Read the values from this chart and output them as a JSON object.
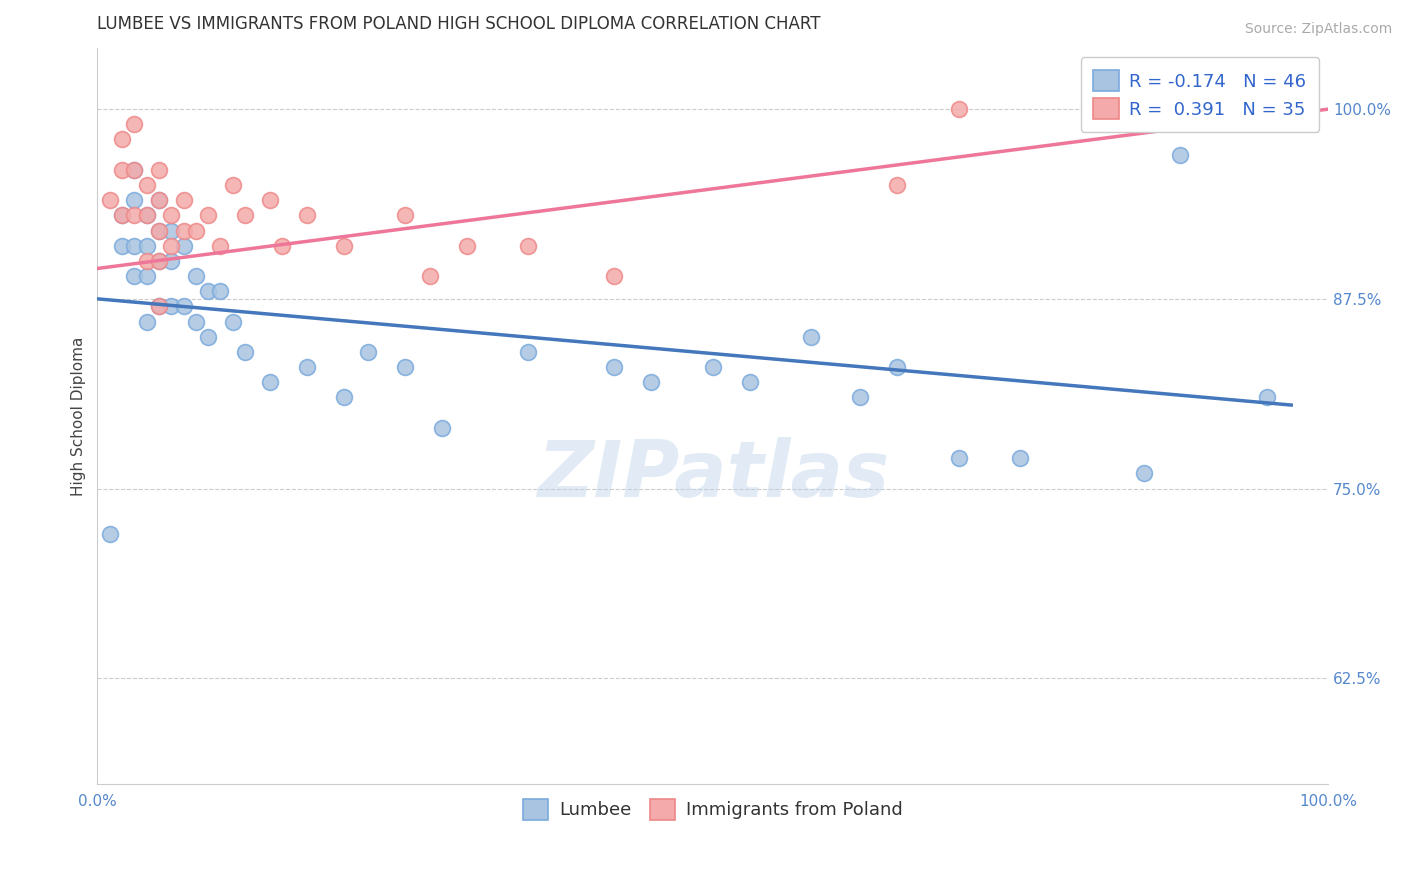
{
  "title": "LUMBEE VS IMMIGRANTS FROM POLAND HIGH SCHOOL DIPLOMA CORRELATION CHART",
  "source": "Source: ZipAtlas.com",
  "ylabel": "High School Diploma",
  "xlim": [
    0.0,
    1.0
  ],
  "ylim": [
    0.555,
    1.04
  ],
  "ytick_vals": [
    0.625,
    0.75,
    0.875,
    1.0
  ],
  "ytick_labels": [
    "62.5%",
    "75.0%",
    "87.5%",
    "100.0%"
  ],
  "xtick_vals": [
    0.0,
    1.0
  ],
  "xtick_labels": [
    "0.0%",
    "100.0%"
  ],
  "lumbee_R": -0.174,
  "lumbee_N": 46,
  "poland_R": 0.391,
  "poland_N": 35,
  "lumbee_color": "#a8c4e0",
  "poland_color": "#f4aaaa",
  "lumbee_edge_color": "#7aaadd",
  "poland_edge_color": "#ee8888",
  "lumbee_line_color": "#4477bb",
  "poland_line_color": "#ee7799",
  "background_color": "#ffffff",
  "grid_color": "#cccccc",
  "watermark": "ZIPatlas",
  "lumbee_x": [
    0.01,
    0.02,
    0.02,
    0.03,
    0.03,
    0.03,
    0.03,
    0.04,
    0.04,
    0.04,
    0.04,
    0.05,
    0.05,
    0.05,
    0.05,
    0.06,
    0.06,
    0.06,
    0.07,
    0.07,
    0.08,
    0.08,
    0.09,
    0.09,
    0.1,
    0.11,
    0.12,
    0.14,
    0.17,
    0.2,
    0.22,
    0.25,
    0.28,
    0.35,
    0.42,
    0.45,
    0.5,
    0.53,
    0.58,
    0.62,
    0.65,
    0.7,
    0.75,
    0.85,
    0.88,
    0.95
  ],
  "lumbee_y": [
    0.72,
    0.93,
    0.91,
    0.96,
    0.94,
    0.91,
    0.89,
    0.93,
    0.91,
    0.89,
    0.86,
    0.94,
    0.92,
    0.9,
    0.87,
    0.92,
    0.9,
    0.87,
    0.91,
    0.87,
    0.89,
    0.86,
    0.88,
    0.85,
    0.88,
    0.86,
    0.84,
    0.82,
    0.83,
    0.81,
    0.84,
    0.83,
    0.79,
    0.84,
    0.83,
    0.82,
    0.83,
    0.82,
    0.85,
    0.81,
    0.83,
    0.77,
    0.77,
    0.76,
    0.97,
    0.81
  ],
  "poland_x": [
    0.01,
    0.02,
    0.02,
    0.02,
    0.03,
    0.03,
    0.03,
    0.04,
    0.04,
    0.04,
    0.05,
    0.05,
    0.05,
    0.05,
    0.05,
    0.06,
    0.06,
    0.07,
    0.07,
    0.08,
    0.09,
    0.1,
    0.11,
    0.12,
    0.14,
    0.15,
    0.17,
    0.2,
    0.25,
    0.27,
    0.3,
    0.35,
    0.42,
    0.65,
    0.7
  ],
  "poland_y": [
    0.94,
    0.98,
    0.96,
    0.93,
    0.99,
    0.96,
    0.93,
    0.95,
    0.93,
    0.9,
    0.96,
    0.94,
    0.92,
    0.9,
    0.87,
    0.93,
    0.91,
    0.94,
    0.92,
    0.92,
    0.93,
    0.91,
    0.95,
    0.93,
    0.94,
    0.91,
    0.93,
    0.91,
    0.93,
    0.89,
    0.91,
    0.91,
    0.89,
    0.95,
    1.0
  ],
  "lumbee_line_x0": 0.0,
  "lumbee_line_y0": 0.875,
  "lumbee_line_x1": 0.97,
  "lumbee_line_y1": 0.805,
  "poland_line_x0": 0.0,
  "poland_line_y0": 0.895,
  "poland_line_x1": 1.0,
  "poland_line_y1": 1.0,
  "title_fontsize": 12,
  "axis_label_fontsize": 11,
  "tick_fontsize": 11,
  "legend_fontsize": 13,
  "source_fontsize": 10
}
